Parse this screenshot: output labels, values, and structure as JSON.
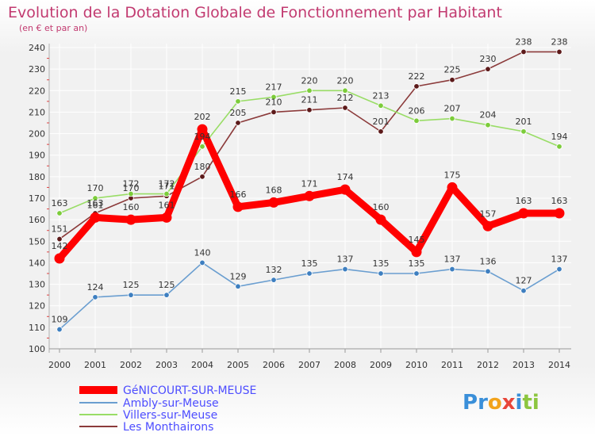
{
  "chart_data": {
    "type": "line",
    "title": "Evolution de la Dotation Globale de Fonctionnement par Habitant",
    "subtitle": "(en € et par an)",
    "x": [
      "2000",
      "2001",
      "2002",
      "2003",
      "2004",
      "2005",
      "2006",
      "2007",
      "2008",
      "2009",
      "2010",
      "2011",
      "2012",
      "2013",
      "2014"
    ],
    "ylim": [
      100,
      240
    ],
    "yticks": [
      100,
      110,
      120,
      130,
      140,
      150,
      160,
      170,
      180,
      190,
      200,
      210,
      220,
      230,
      240
    ],
    "grid": true,
    "legend_position": "bottom-left",
    "series": [
      {
        "name": "GéNICOURT-SUR-MEUSE",
        "color": "#ff0000",
        "marker_color": "#ff0000",
        "values": [
          142,
          161,
          160,
          161,
          202,
          166,
          168,
          171,
          174,
          160,
          145,
          175,
          157,
          163,
          163
        ]
      },
      {
        "name": "Ambly-sur-Meuse",
        "color": "#6a9ed0",
        "marker_color": "#3e7fc0",
        "values": [
          109,
          124,
          125,
          125,
          140,
          129,
          132,
          135,
          137,
          135,
          135,
          137,
          136,
          127,
          137
        ]
      },
      {
        "name": "Villers-sur-Meuse",
        "color": "#99dd66",
        "marker_color": "#7ccc3a",
        "values": [
          163,
          170,
          172,
          172,
          194,
          215,
          217,
          220,
          220,
          213,
          206,
          207,
          204,
          201,
          194
        ]
      },
      {
        "name": "Les Monthairons",
        "color": "#8b3a3a",
        "marker_color": "#5c1a1a",
        "values": [
          151,
          163,
          170,
          171,
          180,
          205,
          210,
          211,
          212,
          201,
          222,
          225,
          230,
          238,
          238
        ]
      }
    ]
  },
  "logo": {
    "letters": [
      "P",
      "r",
      "o",
      "x",
      "i",
      "t",
      "i"
    ],
    "colors": [
      "#3a8fd9",
      "#3a8fd9",
      "#f2a31b",
      "#e8463a",
      "#3a8fd9",
      "#8cc63f",
      "#8cc63f"
    ]
  }
}
